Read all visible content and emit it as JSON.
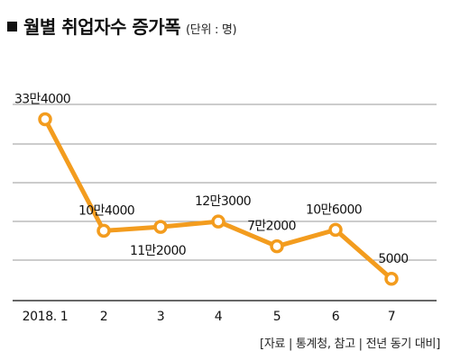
{
  "header": {
    "title": "월별 취업자수 증가폭",
    "unit": "(단위 : 명)"
  },
  "source": "[자료 | 통계청, 참고 | 전년 동기 대비]",
  "colors": {
    "line": "#F39C1E",
    "marker_fill": "#ffffff",
    "grid": "#9a9a9a",
    "axis": "#333333"
  },
  "chart_data": {
    "type": "line",
    "categories": [
      "2018. 1",
      "2",
      "3",
      "4",
      "5",
      "6",
      "7"
    ],
    "values": [
      334000,
      104000,
      112000,
      123000,
      72000,
      106000,
      5000
    ],
    "data_labels": [
      "33만4000",
      "10만4000",
      "11만2000",
      "12만3000",
      "7만2000",
      "10만6000",
      "5000"
    ],
    "ylim": [
      -40000,
      450000
    ],
    "grid": true,
    "legend": "none"
  }
}
